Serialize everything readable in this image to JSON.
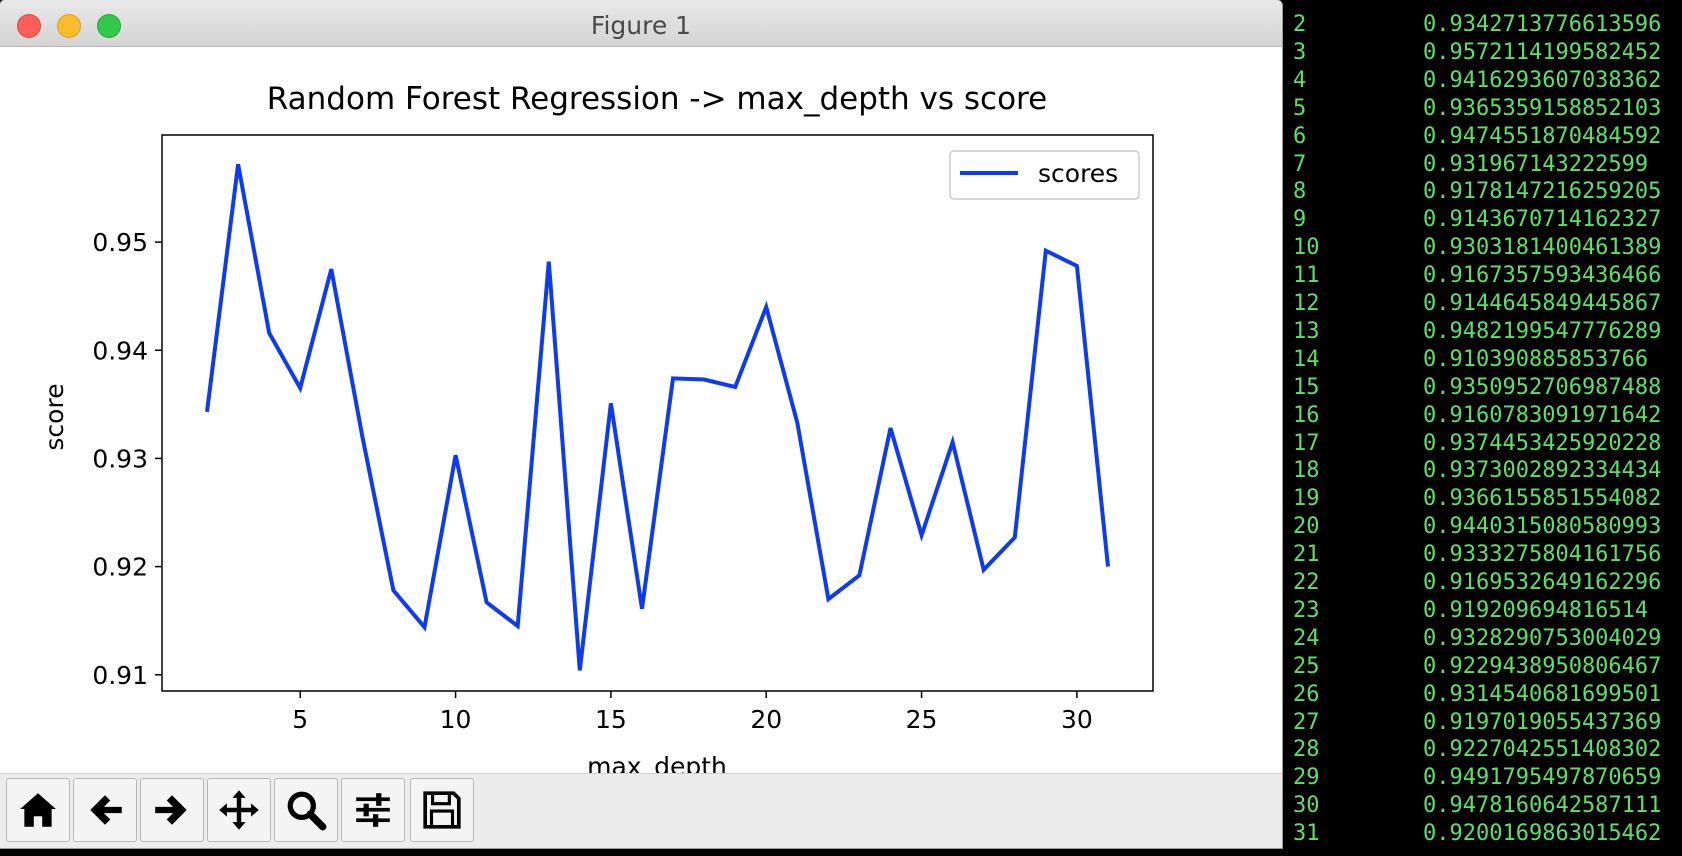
{
  "window": {
    "title": "Figure 1"
  },
  "chart_data": {
    "type": "line",
    "title": "Random Forest Regression -> max_depth vs score",
    "xlabel": "max_depth",
    "ylabel": "score",
    "xlim": [
      0.55,
      32.45
    ],
    "ylim": [
      0.9085,
      0.9599
    ],
    "xticks": [
      5,
      10,
      15,
      20,
      25,
      30
    ],
    "yticks": [
      0.91,
      0.92,
      0.93,
      0.94,
      0.95
    ],
    "xtick_labels": [
      "5",
      "10",
      "15",
      "20",
      "25",
      "30"
    ],
    "ytick_labels": [
      "0.91",
      "0.92",
      "0.93",
      "0.94",
      "0.95"
    ],
    "legend": {
      "position": "upper-right",
      "label": "scores"
    },
    "color": "#0d3bf5",
    "x": [
      2,
      3,
      4,
      5,
      6,
      7,
      8,
      9,
      10,
      11,
      12,
      13,
      14,
      15,
      16,
      17,
      18,
      19,
      20,
      21,
      22,
      23,
      24,
      25,
      26,
      27,
      28,
      29,
      30,
      31
    ],
    "series": [
      {
        "name": "scores",
        "values": [
          0.9343,
          0.9572,
          0.9416,
          0.9365,
          0.9475,
          0.932,
          0.9178,
          0.9144,
          0.9303,
          0.9167,
          0.9145,
          0.9482,
          0.9104,
          0.9351,
          0.9161,
          0.9374,
          0.9373,
          0.9366,
          0.944,
          0.9333,
          0.917,
          0.9192,
          0.9328,
          0.9229,
          0.9315,
          0.9197,
          0.9227,
          0.9492,
          0.9478,
          0.92
        ]
      }
    ],
    "grid": false
  },
  "toolbar": {
    "buttons": [
      {
        "icon": "home-icon"
      },
      {
        "icon": "back-arrow-icon"
      },
      {
        "icon": "forward-arrow-icon"
      },
      {
        "icon": "pan-icon"
      },
      {
        "icon": "zoom-icon"
      },
      {
        "icon": "subplots-icon"
      },
      {
        "icon": "save-icon"
      }
    ]
  },
  "terminal": {
    "color": "#5de06a",
    "rows": [
      {
        "idx": "2",
        "val": "0.9342713776613596"
      },
      {
        "idx": "3",
        "val": "0.9572114199582452"
      },
      {
        "idx": "4",
        "val": "0.9416293607038362"
      },
      {
        "idx": "5",
        "val": "0.9365359158852103"
      },
      {
        "idx": "6",
        "val": "0.9474551870484592"
      },
      {
        "idx": "7",
        "val": "0.931967143222599"
      },
      {
        "idx": "8",
        "val": "0.9178147216259205"
      },
      {
        "idx": "9",
        "val": "0.9143670714162327"
      },
      {
        "idx": "10",
        "val": "0.9303181400461389"
      },
      {
        "idx": "11",
        "val": "0.9167357593436466"
      },
      {
        "idx": "12",
        "val": "0.9144645849445867"
      },
      {
        "idx": "13",
        "val": "0.9482199547776289"
      },
      {
        "idx": "14",
        "val": "0.910390885853766"
      },
      {
        "idx": "15",
        "val": "0.9350952706987488"
      },
      {
        "idx": "16",
        "val": "0.9160783091971642"
      },
      {
        "idx": "17",
        "val": "0.9374453425920228"
      },
      {
        "idx": "18",
        "val": "0.9373002892334434"
      },
      {
        "idx": "19",
        "val": "0.9366155851554082"
      },
      {
        "idx": "20",
        "val": "0.9440315080580993"
      },
      {
        "idx": "21",
        "val": "0.9333275804161756"
      },
      {
        "idx": "22",
        "val": "0.9169532649162296"
      },
      {
        "idx": "23",
        "val": "0.919209694816514"
      },
      {
        "idx": "24",
        "val": "0.9328290753004029"
      },
      {
        "idx": "25",
        "val": "0.9229438950806467"
      },
      {
        "idx": "26",
        "val": "0.9314540681699501"
      },
      {
        "idx": "27",
        "val": "0.9197019055437369"
      },
      {
        "idx": "28",
        "val": "0.9227042551408302"
      },
      {
        "idx": "29",
        "val": "0.9491795497870659"
      },
      {
        "idx": "30",
        "val": "0.9478160642587111"
      },
      {
        "idx": "31",
        "val": "0.9200169863015462"
      }
    ]
  }
}
